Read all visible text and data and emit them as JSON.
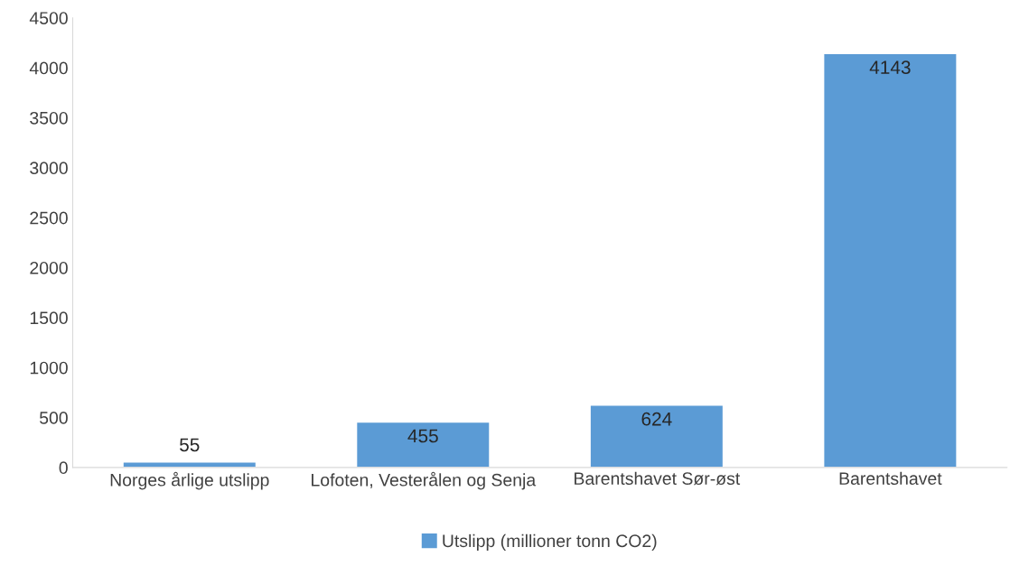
{
  "chart_data": {
    "type": "bar",
    "categories": [
      "Norges årlige utslipp",
      "Lofoten, Vesterålen og Senja",
      "Barentshavet Sør-øst",
      "Barentshavet"
    ],
    "series": [
      {
        "name": "Utslipp (millioner tonn CO2)",
        "color": "#5b9bd5",
        "values": [
          55,
          455,
          624,
          4143
        ]
      }
    ],
    "ylim": [
      0,
      4500
    ],
    "yticks": [
      0,
      500,
      1000,
      1500,
      2000,
      2500,
      3000,
      3500,
      4000,
      4500
    ],
    "grid": false,
    "legend": "bottom",
    "data_labels": true
  }
}
